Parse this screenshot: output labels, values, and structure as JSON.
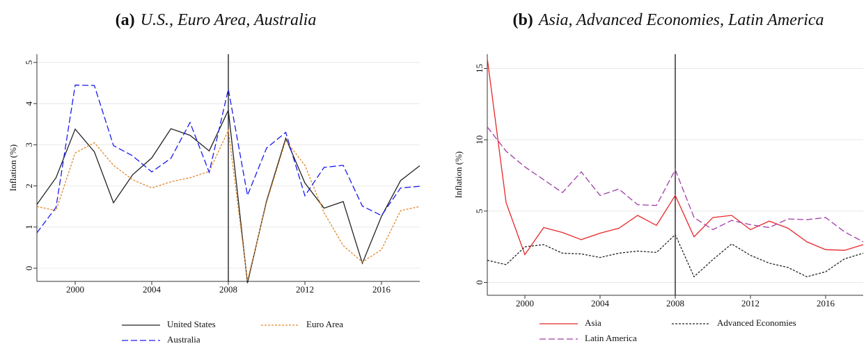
{
  "chart_data": [
    {
      "type": "line",
      "label": "(a)",
      "title": "U.S., Euro Area, Australia",
      "y_label": "Inflation (%)",
      "x": [
        1998,
        1999,
        2000,
        2001,
        2002,
        2003,
        2004,
        2005,
        2006,
        2007,
        2008,
        2009,
        2010,
        2011,
        2012,
        2013,
        2014,
        2015,
        2016,
        2017,
        2018
      ],
      "xlim": [
        1998,
        2018
      ],
      "xticks": [
        2000,
        2004,
        2008,
        2012,
        2016
      ],
      "ylim": [
        -0.32,
        5.2
      ],
      "yticks": [
        0,
        1,
        2,
        3,
        4,
        5
      ],
      "grid": true,
      "vline": 2008,
      "series": [
        {
          "name": "United States",
          "color": "#222222",
          "dash": "solid",
          "values": [
            1.55,
            2.2,
            3.38,
            2.83,
            1.59,
            2.27,
            2.68,
            3.39,
            3.23,
            2.85,
            3.84,
            -0.36,
            1.64,
            3.16,
            2.07,
            1.46,
            1.62,
            0.12,
            1.26,
            2.13,
            2.49
          ]
        },
        {
          "name": "Euro Area",
          "color": "#e08a2c",
          "dash": "dotted",
          "values": [
            1.5,
            1.4,
            2.8,
            3.05,
            2.5,
            2.15,
            1.95,
            2.1,
            2.2,
            2.35,
            3.35,
            -0.3,
            1.6,
            3.1,
            2.5,
            1.35,
            0.55,
            0.15,
            0.45,
            1.4,
            1.5
          ]
        },
        {
          "name": "Australia",
          "color": "#1a1aee",
          "dash": "dashed",
          "values": [
            0.86,
            1.48,
            4.45,
            4.44,
            2.98,
            2.73,
            2.34,
            2.67,
            3.54,
            2.33,
            4.35,
            1.77,
            2.92,
            3.3,
            1.76,
            2.45,
            2.5,
            1.51,
            1.28,
            1.95,
            1.99
          ]
        }
      ]
    },
    {
      "type": "line",
      "label": "(b)",
      "title": "Asia, Advanced Economies, Latin America",
      "y_label": "Inflation (%)",
      "x": [
        1998,
        1999,
        2000,
        2001,
        2002,
        2003,
        2004,
        2005,
        2006,
        2007,
        2008,
        2009,
        2010,
        2011,
        2012,
        2013,
        2014,
        2015,
        2016,
        2017,
        2018
      ],
      "xlim": [
        1998,
        2018
      ],
      "xticks": [
        2000,
        2004,
        2008,
        2012,
        2016
      ],
      "ylim": [
        -0.9,
        16
      ],
      "yticks": [
        0,
        5,
        10,
        15
      ],
      "grid": true,
      "vline": 2008,
      "series": [
        {
          "name": "Asia",
          "color": "#e8262a",
          "dash": "solid",
          "values": [
            15.7,
            5.6,
            1.95,
            3.85,
            3.5,
            3.0,
            3.45,
            3.8,
            4.7,
            4.0,
            6.1,
            3.2,
            4.55,
            4.7,
            3.7,
            4.3,
            3.8,
            2.85,
            2.3,
            2.25,
            2.65
          ]
        },
        {
          "name": "Advanced Economies",
          "color": "#222222",
          "dash": "dotted",
          "values": [
            1.55,
            1.25,
            2.5,
            2.65,
            2.05,
            2.0,
            1.75,
            2.05,
            2.2,
            2.1,
            3.35,
            0.4,
            1.6,
            2.7,
            1.9,
            1.35,
            1.05,
            0.4,
            0.75,
            1.65,
            2.05
          ]
        },
        {
          "name": "Latin America",
          "color": "#a03ca8",
          "dash": "dashed",
          "values": [
            10.9,
            9.2,
            8.1,
            7.2,
            6.3,
            7.75,
            6.1,
            6.55,
            5.45,
            5.4,
            7.9,
            4.55,
            3.7,
            4.35,
            4.05,
            3.85,
            4.45,
            4.4,
            4.55,
            3.55,
            2.85
          ]
        }
      ]
    }
  ]
}
